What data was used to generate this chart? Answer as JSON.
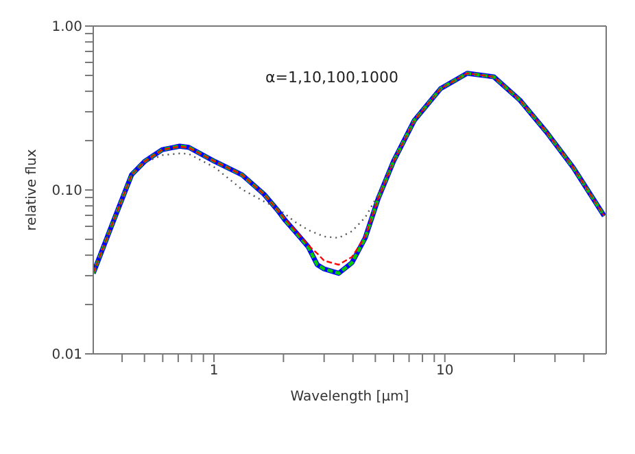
{
  "chart_data": {
    "type": "line",
    "xlabel": "Wavelength [μm]",
    "ylabel": "relative flux",
    "annotations": [
      "α=1,10,100,1000"
    ],
    "log": "xy",
    "grid": false,
    "legend": false,
    "marker": "none",
    "x": [
      0.3,
      0.366,
      0.44,
      0.5,
      0.597,
      0.71,
      0.778,
      1.01,
      1.32,
      1.65,
      1.89,
      2.04,
      2.24,
      2.56,
      2.8,
      3.0,
      3.47,
      3.96,
      4.52,
      5.15,
      6,
      7.38,
      9.6,
      12.5,
      16.3,
      21.2,
      27.6,
      36,
      49
    ],
    "xlim": [
      0.3,
      50
    ],
    "xticks": [
      {
        "value": 0.4,
        "label": null
      },
      {
        "value": 0.5,
        "label": null
      },
      {
        "value": 0.6,
        "label": null
      },
      {
        "value": 0.7,
        "label": null
      },
      {
        "value": 0.8,
        "label": null
      },
      {
        "value": 0.9,
        "label": null
      },
      1,
      {
        "value": 2,
        "label": null
      },
      {
        "value": 3,
        "label": null
      },
      {
        "value": 4,
        "label": null
      },
      {
        "value": 5,
        "label": null
      },
      {
        "value": 6,
        "label": null
      },
      {
        "value": 7,
        "label": null
      },
      {
        "value": 8,
        "label": null
      },
      {
        "value": 9,
        "label": null
      },
      10,
      {
        "value": 20,
        "label": null
      },
      {
        "value": 30,
        "label": null
      },
      {
        "value": 40,
        "label": null
      }
    ],
    "ylim": [
      0.01,
      1
    ],
    "yticks": [
      {
        "value": 0.01,
        "label": "0.01"
      },
      {
        "value": 0.02,
        "label": null
      },
      {
        "value": 0.03,
        "label": null
      },
      {
        "value": 0.04,
        "label": null
      },
      {
        "value": 0.05,
        "label": null
      },
      {
        "value": 0.06,
        "label": null
      },
      {
        "value": 0.07,
        "label": null
      },
      {
        "value": 0.08,
        "label": null
      },
      {
        "value": 0.09,
        "label": null
      },
      {
        "value": 0.1,
        "label": "0.10"
      },
      {
        "value": 0.2,
        "label": null
      },
      {
        "value": 0.3,
        "label": null
      },
      {
        "value": 0.4,
        "label": null
      },
      {
        "value": 0.5,
        "label": null
      },
      {
        "value": 0.6,
        "label": null
      },
      {
        "value": 0.7,
        "label": null
      },
      {
        "value": 0.8,
        "label": null
      },
      {
        "value": 0.9,
        "label": null
      },
      {
        "value": 1,
        "label": "1.00"
      }
    ],
    "series": [
      {
        "color": "#555555",
        "line_style": "dotted",
        "values": [
          0.031,
          0.064,
          0.124,
          0.147,
          0.163,
          0.167,
          0.166,
          0.137,
          0.101,
          0.085,
          0.077,
          0.071,
          0.064,
          0.057,
          0.054,
          0.052,
          0.051,
          0.056,
          0.068,
          0.094,
          0.15,
          0.266,
          0.416,
          0.515,
          0.49,
          0.352,
          0.225,
          0.137,
          0.0695
        ]
      },
      {
        "color": "#ff0000",
        "line_style": "dashed",
        "values": [
          0.031,
          0.064,
          0.124,
          0.149,
          0.176,
          0.184,
          0.181,
          0.149,
          0.124,
          0.094,
          0.075,
          0.066,
          0.057,
          0.046,
          0.041,
          0.037,
          0.035,
          0.039,
          0.052,
          0.089,
          0.15,
          0.266,
          0.416,
          0.515,
          0.49,
          0.352,
          0.225,
          0.137,
          0.0695
        ]
      },
      {
        "color": "#00cc00",
        "line_style": "dashed",
        "values": [
          0.031,
          0.064,
          0.124,
          0.149,
          0.176,
          0.185,
          0.182,
          0.149,
          0.124,
          0.094,
          0.075,
          0.065,
          0.056,
          0.045,
          0.035,
          0.033,
          0.031,
          0.036,
          0.051,
          0.089,
          0.15,
          0.266,
          0.416,
          0.515,
          0.49,
          0.352,
          0.225,
          0.137,
          0.0695
        ]
      },
      {
        "color": "#0000ff",
        "line_style": "solid",
        "values": [
          0.031,
          0.064,
          0.124,
          0.149,
          0.176,
          0.185,
          0.182,
          0.149,
          0.124,
          0.094,
          0.075,
          0.065,
          0.056,
          0.045,
          0.035,
          0.033,
          0.031,
          0.036,
          0.051,
          0.089,
          0.15,
          0.266,
          0.416,
          0.515,
          0.49,
          0.352,
          0.225,
          0.137,
          0.0695
        ]
      }
    ]
  }
}
